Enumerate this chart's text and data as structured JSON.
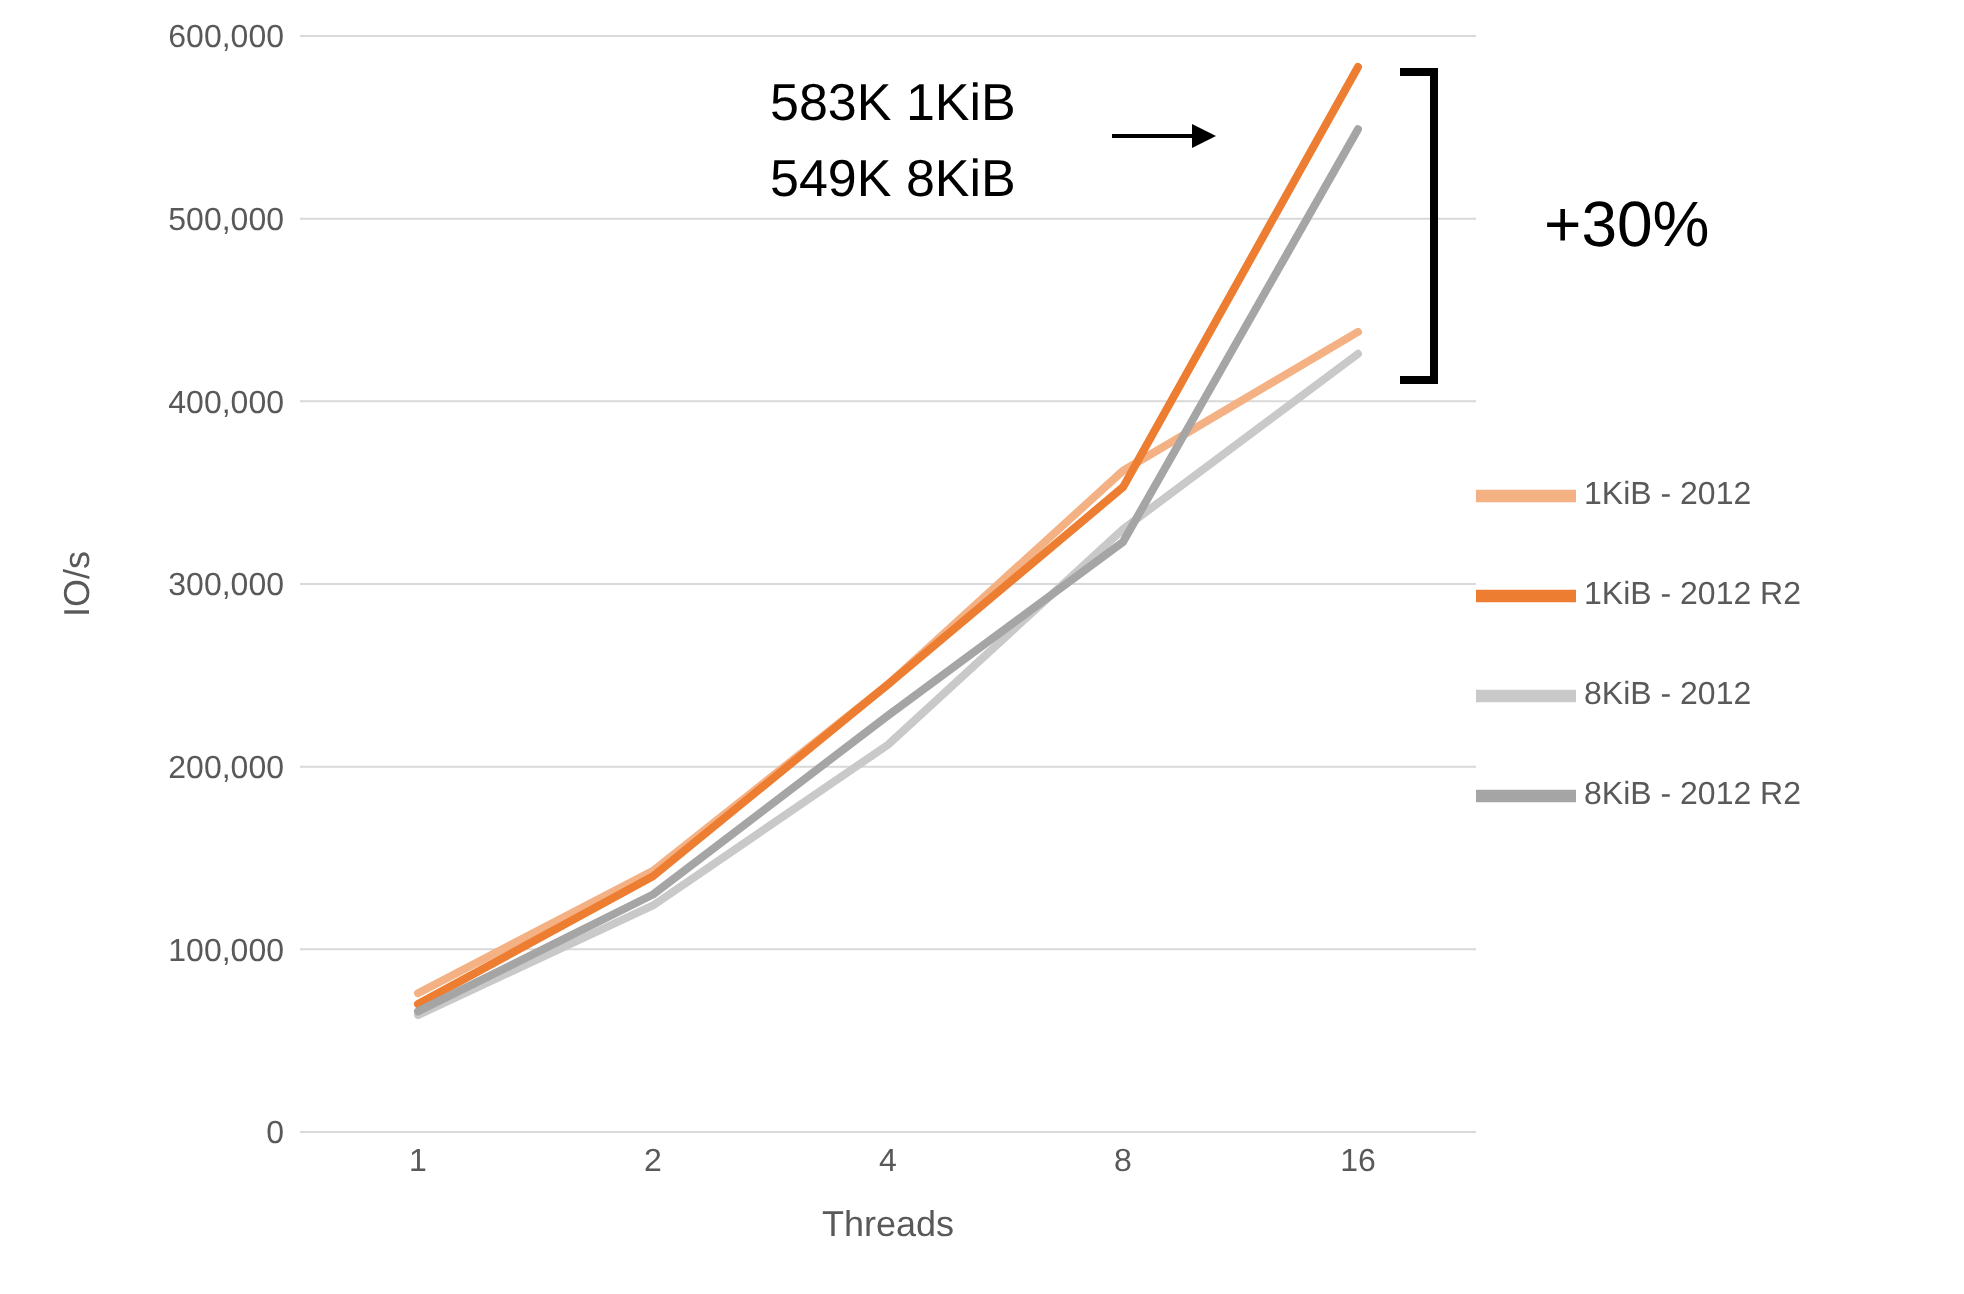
{
  "chart_data": {
    "type": "line",
    "xlabel": "Threads",
    "ylabel": "IO/s",
    "categories": [
      "1",
      "2",
      "4",
      "8",
      "16"
    ],
    "series": [
      {
        "name": "1KiB - 2012",
        "color": "#f4b183",
        "values": [
          76000,
          143000,
          245000,
          362000,
          438000
        ]
      },
      {
        "name": "1KiB - 2012 R2",
        "color": "#ed7d31",
        "values": [
          70000,
          140000,
          245000,
          353000,
          583000
        ]
      },
      {
        "name": "8KiB - 2012",
        "color": "#c9c9c9",
        "values": [
          64000,
          124000,
          212000,
          330000,
          426000
        ]
      },
      {
        "name": "8KiB - 2012 R2",
        "color": "#a5a5a5",
        "values": [
          66000,
          130000,
          228000,
          323000,
          549000
        ]
      }
    ],
    "ylim": [
      0,
      600000
    ],
    "yticks": [
      0,
      {
        "value": 100000,
        "label": "100,000"
      },
      {
        "value": 200000,
        "label": "200,000"
      },
      {
        "value": 300000,
        "label": "300,000"
      },
      {
        "value": 400000,
        "label": "400,000"
      },
      {
        "value": 500000,
        "label": "500,000"
      },
      {
        "value": 600000,
        "label": "600,000"
      }
    ],
    "grid": "y",
    "legend": "right",
    "marker": "none",
    "line_style": "solid",
    "annotations": [
      "583K 1KiB",
      "549K 8KiB",
      "+30%"
    ]
  }
}
